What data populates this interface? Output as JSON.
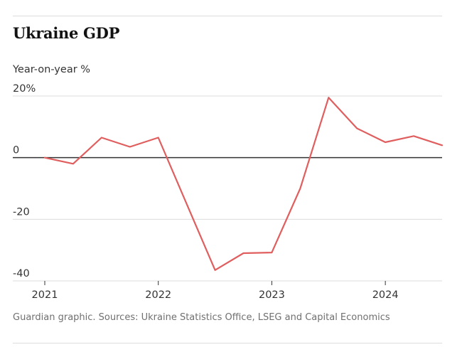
{
  "chart_data": {
    "type": "line",
    "title": "Ukraine GDP",
    "ylabel": "Year-on-year %",
    "xlabel": "",
    "ylim": [
      -40,
      20
    ],
    "yticks": [
      {
        "value": 20,
        "label": "20%"
      },
      {
        "value": 0,
        "label": "0"
      },
      {
        "value": -20,
        "label": "-20"
      },
      {
        "value": -40,
        "label": "-40"
      }
    ],
    "xlim": [
      2021,
      2024.5
    ],
    "xticks": [
      {
        "value": 2021,
        "label": "2021"
      },
      {
        "value": 2022,
        "label": "2022"
      },
      {
        "value": 2023,
        "label": "2023"
      },
      {
        "value": 2024,
        "label": "2024"
      }
    ],
    "series": [
      {
        "name": "Ukraine GDP",
        "color": "#e05e5e",
        "points": [
          {
            "x": 2021.0,
            "y": 0
          },
          {
            "x": 2021.25,
            "y": -2
          },
          {
            "x": 2021.5,
            "y": 6.5
          },
          {
            "x": 2021.75,
            "y": 3.5
          },
          {
            "x": 2022.0,
            "y": 6.5
          },
          {
            "x": 2022.25,
            "y": -15
          },
          {
            "x": 2022.5,
            "y": -36.5
          },
          {
            "x": 2022.75,
            "y": -31
          },
          {
            "x": 2023.0,
            "y": -30.8
          },
          {
            "x": 2023.25,
            "y": -10
          },
          {
            "x": 2023.5,
            "y": 19.5
          },
          {
            "x": 2023.75,
            "y": 9.5
          },
          {
            "x": 2024.0,
            "y": 5
          },
          {
            "x": 2024.25,
            "y": 7
          },
          {
            "x": 2024.5,
            "y": 4
          }
        ]
      }
    ],
    "grid": true
  },
  "footer": {
    "source": "Guardian graphic. Sources: Ukraine Statistics Office, LSEG and Capital Economics"
  },
  "colors": {
    "line": "#e05e5e",
    "zero_axis": "#333333",
    "grid": "#dcdcdc"
  }
}
